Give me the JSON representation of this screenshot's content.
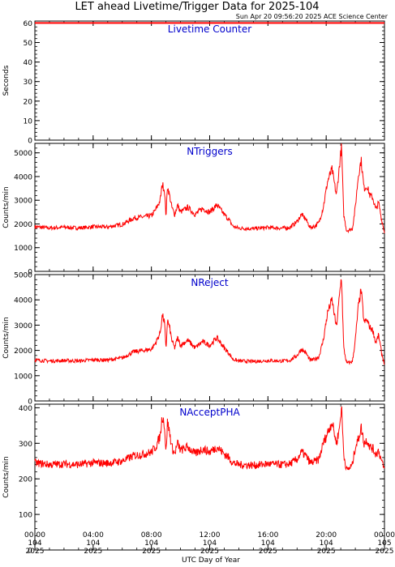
{
  "header": {
    "title": "LET ahead Livetime/Trigger Data for 2025-104",
    "subtitle": "Sun Apr 20 09:56:20 2025 ACE Science Center"
  },
  "xaxis": {
    "label": "UTC Day of Year",
    "ticks": [
      {
        "time": "00:00",
        "doy": "104",
        "year": "2025",
        "hour": 0
      },
      {
        "time": "04:00",
        "doy": "104",
        "year": "2025",
        "hour": 4
      },
      {
        "time": "08:00",
        "doy": "104",
        "year": "2025",
        "hour": 8
      },
      {
        "time": "12:00",
        "doy": "104",
        "year": "2025",
        "hour": 12
      },
      {
        "time": "16:00",
        "doy": "104",
        "year": "2025",
        "hour": 16
      },
      {
        "time": "20:00",
        "doy": "104",
        "year": "2025",
        "hour": 20
      },
      {
        "time": "00:00",
        "doy": "105",
        "year": "2025",
        "hour": 24
      }
    ]
  },
  "colors": {
    "series": "#ff0000",
    "panel_title": "#0000cc",
    "axis": "#000000"
  },
  "chart_data": [
    {
      "type": "line",
      "title": "Livetime Counter",
      "ylabel": "Seconds",
      "ylim": [
        0,
        61
      ],
      "yticks": [
        0,
        10,
        20,
        30,
        40,
        50,
        60
      ],
      "xlim": [
        0,
        24
      ],
      "series": [
        {
          "x": [
            0,
            24
          ],
          "y": [
            60,
            60
          ]
        }
      ]
    },
    {
      "type": "line",
      "title": "NTriggers",
      "ylabel": "Counts/min",
      "ylim": [
        0,
        5400
      ],
      "yticks": [
        0,
        1000,
        2000,
        3000,
        4000,
        5000
      ],
      "xlim": [
        0,
        24
      ],
      "series": [
        {
          "x": [
            0,
            1,
            2,
            3,
            4,
            5,
            6,
            6.8,
            7.5,
            8,
            8.3,
            8.6,
            8.75,
            8.9,
            9.0,
            9.1,
            9.25,
            9.4,
            9.6,
            9.8,
            10,
            10.5,
            11,
            11.5,
            12,
            12.5,
            13,
            13.3,
            13.6,
            14,
            15,
            16,
            17,
            17.5,
            18,
            18.3,
            18.6,
            18.9,
            19.2,
            19.5,
            19.8,
            20.1,
            20.4,
            20.7,
            20.9,
            21.05,
            21.2,
            21.4,
            21.6,
            21.8,
            22,
            22.2,
            22.4,
            22.6,
            22.8,
            23.0,
            23.2,
            23.4,
            23.6,
            23.8,
            24
          ],
          "y": [
            1880,
            1830,
            1860,
            1830,
            1880,
            1870,
            1980,
            2250,
            2300,
            2350,
            2600,
            3000,
            3700,
            3400,
            2300,
            3600,
            3200,
            2700,
            2400,
            2800,
            2500,
            2700,
            2400,
            2650,
            2500,
            2800,
            2400,
            2200,
            1900,
            1820,
            1800,
            1850,
            1820,
            1850,
            2100,
            2400,
            2200,
            1850,
            1900,
            2050,
            2700,
            3800,
            4300,
            3200,
            4400,
            5300,
            2400,
            1720,
            1750,
            1800,
            2700,
            4000,
            4700,
            3500,
            3600,
            3200,
            3100,
            2600,
            2900,
            2200,
            1650
          ]
        }
      ]
    },
    {
      "type": "line",
      "title": "NReject",
      "ylabel": "Counts/min",
      "ylim": [
        0,
        5000
      ],
      "yticks": [
        0,
        1000,
        2000,
        3000,
        4000,
        5000
      ],
      "xlim": [
        0,
        24
      ],
      "series": [
        {
          "x": [
            0,
            1,
            2,
            3,
            4,
            5,
            6,
            6.8,
            7.5,
            8,
            8.3,
            8.6,
            8.75,
            8.9,
            9.0,
            9.1,
            9.25,
            9.4,
            9.6,
            9.8,
            10,
            10.5,
            11,
            11.5,
            12,
            12.5,
            13,
            13.3,
            13.6,
            14,
            15,
            16,
            17,
            17.5,
            18,
            18.3,
            18.6,
            18.9,
            19.2,
            19.5,
            19.8,
            20.1,
            20.4,
            20.7,
            20.9,
            21.05,
            21.2,
            21.4,
            21.6,
            21.8,
            22,
            22.2,
            22.4,
            22.6,
            22.8,
            23.0,
            23.2,
            23.4,
            23.6,
            23.8,
            24
          ],
          "y": [
            1620,
            1580,
            1600,
            1580,
            1630,
            1620,
            1700,
            1950,
            2000,
            2050,
            2300,
            2700,
            3400,
            3100,
            2000,
            3200,
            2900,
            2400,
            2100,
            2500,
            2200,
            2400,
            2100,
            2350,
            2200,
            2500,
            2100,
            1900,
            1650,
            1580,
            1560,
            1600,
            1580,
            1600,
            1800,
            2050,
            1900,
            1600,
            1650,
            1750,
            2400,
            3500,
            4000,
            2900,
            4100,
            4950,
            2100,
            1500,
            1520,
            1560,
            2400,
            3700,
            4400,
            3100,
            3200,
            2900,
            2800,
            2300,
            2600,
            1900,
            1450
          ]
        }
      ]
    },
    {
      "type": "line",
      "title": "NAcceptPHA",
      "ylabel": "Counts/min",
      "ylim": [
        0,
        410
      ],
      "yticks": [
        0,
        100,
        200,
        300,
        400
      ],
      "xlim": [
        0,
        24
      ],
      "series": [
        {
          "x": [
            0,
            1,
            2,
            3,
            4,
            5,
            6,
            6.8,
            7.5,
            8,
            8.3,
            8.6,
            8.75,
            8.9,
            9.0,
            9.1,
            9.25,
            9.4,
            9.6,
            9.8,
            10,
            10.5,
            11,
            11.5,
            12,
            12.5,
            13,
            13.3,
            13.6,
            14,
            15,
            16,
            17,
            17.5,
            18,
            18.3,
            18.6,
            18.9,
            19.2,
            19.5,
            19.8,
            20.1,
            20.4,
            20.7,
            20.9,
            21.05,
            21.2,
            21.4,
            21.6,
            21.8,
            22,
            22.2,
            22.4,
            22.6,
            22.8,
            23.0,
            23.2,
            23.4,
            23.6,
            23.8,
            24
          ],
          "y": [
            245,
            240,
            242,
            240,
            245,
            244,
            250,
            265,
            270,
            275,
            290,
            320,
            380,
            350,
            270,
            360,
            330,
            290,
            270,
            300,
            280,
            290,
            270,
            285,
            275,
            290,
            270,
            260,
            245,
            240,
            238,
            242,
            240,
            242,
            255,
            275,
            265,
            245,
            248,
            255,
            300,
            330,
            360,
            300,
            340,
            405,
            270,
            225,
            230,
            240,
            290,
            310,
            345,
            300,
            310,
            290,
            285,
            270,
            280,
            250,
            225
          ]
        }
      ]
    }
  ]
}
